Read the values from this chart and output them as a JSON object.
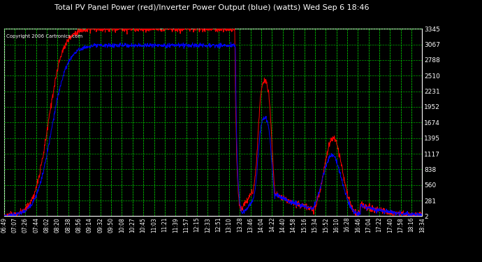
{
  "title": "Total PV Panel Power (red)/Inverter Power Output (blue) (watts) Wed Sep 6 18:46",
  "copyright": "Copyright 2006 Cartronics.com",
  "bg_color": "#000000",
  "plot_bg_color": "#000000",
  "grid_color": "#00bb00",
  "line_color_red": "#ff0000",
  "line_color_blue": "#0000ff",
  "title_color": "#ffffff",
  "tick_color": "#ffffff",
  "copyright_color": "#ffffff",
  "yticks": [
    2.4,
    281.0,
    559.6,
    838.2,
    1116.7,
    1395.3,
    1673.9,
    1952.5,
    2231.1,
    2509.7,
    2788.3,
    3066.8,
    3345.4
  ],
  "ymin": 2.4,
  "ymax": 3345.4,
  "xtick_labels": [
    "06:49",
    "07:07",
    "07:26",
    "07:44",
    "08:02",
    "08:20",
    "08:38",
    "08:56",
    "09:14",
    "09:32",
    "09:50",
    "10:08",
    "10:27",
    "10:45",
    "11:03",
    "11:21",
    "11:39",
    "11:57",
    "12:15",
    "12:33",
    "12:51",
    "13:10",
    "13:28",
    "13:46",
    "14:04",
    "14:22",
    "14:40",
    "14:58",
    "15:16",
    "15:34",
    "15:52",
    "16:10",
    "16:28",
    "16:46",
    "17:04",
    "17:22",
    "17:40",
    "17:58",
    "18:16",
    "18:34"
  ],
  "figsize": [
    6.9,
    3.75
  ],
  "dpi": 100
}
